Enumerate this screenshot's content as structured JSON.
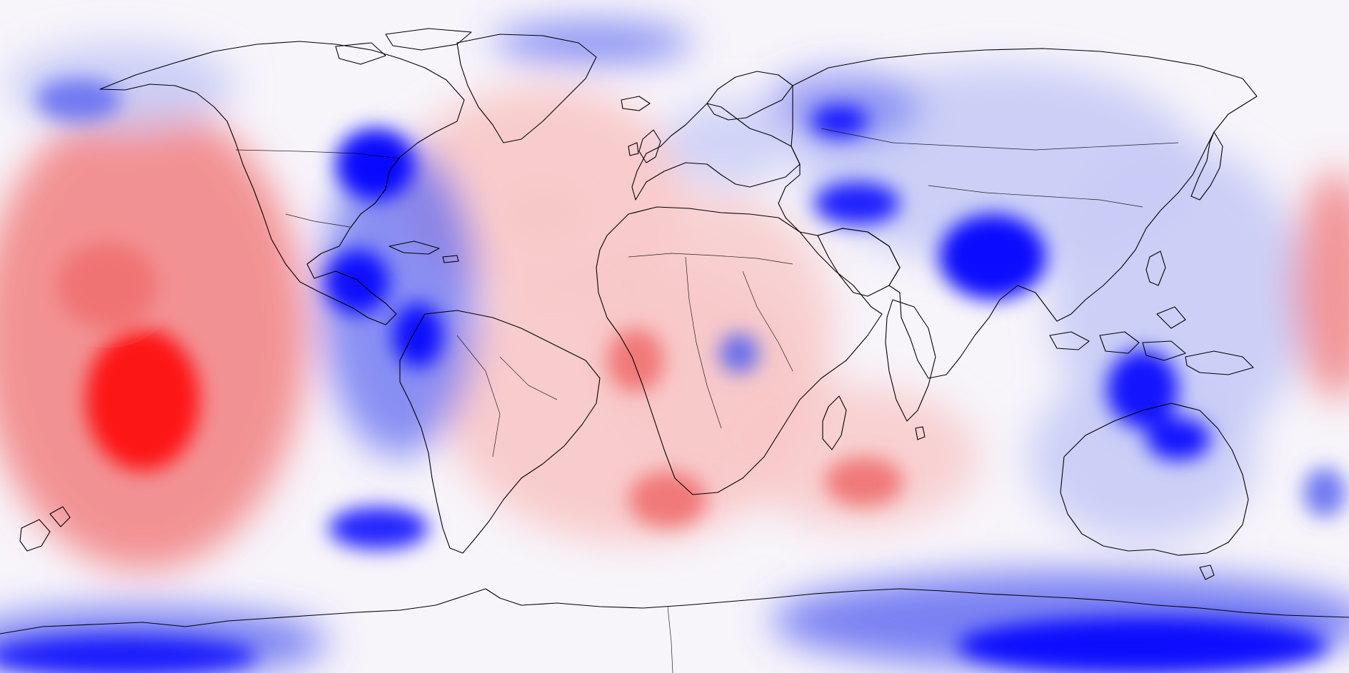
{
  "map": {
    "projection": "equirectangular",
    "field_type": "anomaly-filled-contours",
    "colormap": "blue-white-red",
    "colors": {
      "strong_negative": "#0000ff",
      "negative": "#5a64f0",
      "weak_negative": "#c8ccf6",
      "neutral": "#f7f4fa",
      "weak_positive": "#f8c8c8",
      "positive": "#f07070",
      "strong_positive": "#ff0000",
      "coastline": "#000000"
    },
    "features": [
      "coastlines",
      "country-borders"
    ]
  }
}
